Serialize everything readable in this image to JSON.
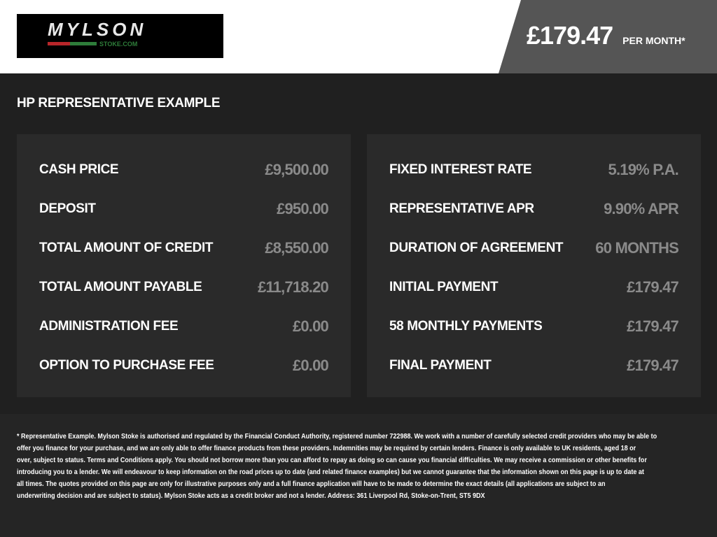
{
  "header": {
    "logo_text": "MYLSON",
    "logo_sub": "STOKE.COM",
    "price": "£179.47",
    "per_month": "PER MONTH*"
  },
  "title": "HP REPRESENTATIVE EXAMPLE",
  "left": [
    {
      "label": "CASH PRICE",
      "value": "£9,500.00"
    },
    {
      "label": "DEPOSIT",
      "value": "£950.00"
    },
    {
      "label": "TOTAL AMOUNT OF CREDIT",
      "value": "£8,550.00"
    },
    {
      "label": "TOTAL AMOUNT PAYABLE",
      "value": "£11,718.20"
    },
    {
      "label": "ADMINISTRATION FEE",
      "value": "£0.00"
    },
    {
      "label": "OPTION TO PURCHASE FEE",
      "value": "£0.00"
    }
  ],
  "right": [
    {
      "label": "FIXED INTEREST RATE",
      "value": "5.19% P.A."
    },
    {
      "label": "REPRESENTATIVE APR",
      "value": "9.90% APR"
    },
    {
      "label": "DURATION OF AGREEMENT",
      "value": "60 MONTHS"
    },
    {
      "label": "INITIAL PAYMENT",
      "value": "£179.47"
    },
    {
      "label": "58 MONTHLY PAYMENTS",
      "value": "£179.47"
    },
    {
      "label": "FINAL PAYMENT",
      "value": "£179.47"
    }
  ],
  "footnote": [
    "* Representative Example. Mylson Stoke is authorised and regulated by the Financial Conduct Authority, registered number 722988. We work with a number of carefully selected credit providers who may be able to",
    "offer you finance for your purchase, and we are only able to offer finance products from these providers. Indemnities may be required by certain lenders. Finance is only available to UK residents, aged 18 or",
    "over, subject to status. Terms and Conditions apply. You should not borrow more than you can afford to repay as doing so can cause you financial difficulties. We may receive a commission or other benefits for",
    "introducing you to a lender. We will endeavour to keep information on the road prices up to date (and related finance examples) but we cannot guarantee that the information shown on this page is up to date at",
    "all times. The quotes provided on this page are only for illustrative purposes only and a full finance application will have to be made to determine the exact details (all applications are subject to an",
    "underwriting decision and are subject to status). Mylson Stoke acts as a credit broker and not a lender. Address: 361 Liverpool Rd, Stoke-on-Trent, ST5 9DX"
  ]
}
